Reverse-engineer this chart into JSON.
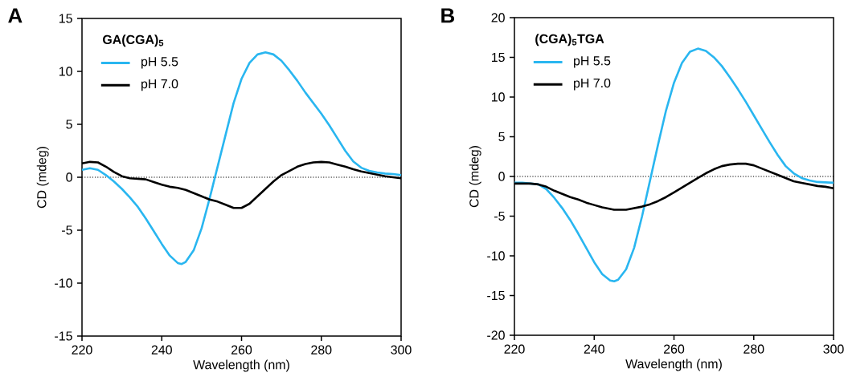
{
  "chart_data": [
    {
      "type": "line",
      "legend_title": "GA(CGA)$_{5}$",
      "xlabel": "Wavelength (nm)",
      "ylabel": "CD (mdeg)",
      "annotations": [
        "A"
      ],
      "x": [
        220,
        222,
        224,
        226,
        228,
        230,
        232,
        234,
        236,
        238,
        240,
        242,
        244,
        245,
        246,
        248,
        250,
        252,
        254,
        256,
        258,
        260,
        262,
        264,
        266,
        268,
        270,
        272,
        274,
        276,
        278,
        280,
        282,
        284,
        286,
        288,
        290,
        292,
        294,
        296,
        298,
        300
      ],
      "series": [
        {
          "name": "pH 5.5",
          "color": "#29b6f0",
          "values": [
            0.7,
            0.85,
            0.7,
            0.2,
            -0.4,
            -1.1,
            -1.9,
            -2.8,
            -3.9,
            -5.1,
            -6.3,
            -7.4,
            -8.1,
            -8.2,
            -8.0,
            -6.9,
            -4.8,
            -2.0,
            1.0,
            4.0,
            7.0,
            9.3,
            10.8,
            11.6,
            11.8,
            11.6,
            11.0,
            10.1,
            9.1,
            8.0,
            7.0,
            6.0,
            4.9,
            3.7,
            2.5,
            1.5,
            0.9,
            0.6,
            0.45,
            0.35,
            0.3,
            0.2
          ]
        },
        {
          "name": "pH 7.0",
          "color": "#000000",
          "values": [
            1.3,
            1.45,
            1.4,
            1.0,
            0.5,
            0.1,
            -0.1,
            -0.15,
            -0.2,
            -0.45,
            -0.7,
            -0.9,
            -1.0,
            -1.1,
            -1.2,
            -1.5,
            -1.8,
            -2.1,
            -2.3,
            -2.6,
            -2.9,
            -2.9,
            -2.5,
            -1.8,
            -1.1,
            -0.4,
            0.2,
            0.6,
            1.0,
            1.25,
            1.4,
            1.45,
            1.4,
            1.2,
            1.0,
            0.75,
            0.55,
            0.4,
            0.25,
            0.1,
            0.0,
            -0.1
          ]
        }
      ],
      "xlim": [
        220,
        300
      ],
      "xticks": [
        220,
        240,
        260,
        280,
        300
      ],
      "ylim": [
        -15,
        15
      ],
      "yticks": [
        -15,
        -10,
        -5,
        0,
        5,
        10,
        15
      ],
      "ref_lines": [
        {
          "axis": "y",
          "value": 0,
          "color": "#000000",
          "line_style": "dotted"
        }
      ],
      "legend": "top left"
    },
    {
      "type": "line",
      "legend_title": "(CGA)$_{5}$TGA",
      "xlabel": "Wavelength (nm)",
      "ylabel": "CD (mdeg)",
      "annotations": [
        "B"
      ],
      "x": [
        220,
        222,
        224,
        226,
        228,
        230,
        232,
        234,
        236,
        238,
        240,
        242,
        244,
        245,
        246,
        248,
        250,
        252,
        254,
        256,
        258,
        260,
        262,
        264,
        266,
        268,
        270,
        272,
        274,
        276,
        278,
        280,
        282,
        284,
        286,
        288,
        290,
        292,
        294,
        296,
        298,
        300
      ],
      "series": [
        {
          "name": "pH 5.5",
          "color": "#29b6f0",
          "values": [
            -0.8,
            -0.8,
            -0.9,
            -1.0,
            -1.6,
            -2.7,
            -4.0,
            -5.5,
            -7.2,
            -9.0,
            -10.8,
            -12.3,
            -13.1,
            -13.2,
            -13.0,
            -11.7,
            -9.0,
            -5.0,
            -0.5,
            4.0,
            8.3,
            11.8,
            14.3,
            15.7,
            16.1,
            15.8,
            15.0,
            13.9,
            12.5,
            11.0,
            9.4,
            7.7,
            6.0,
            4.3,
            2.7,
            1.3,
            0.4,
            -0.2,
            -0.5,
            -0.7,
            -0.75,
            -0.8
          ]
        },
        {
          "name": "pH 7.0",
          "color": "#000000",
          "values": [
            -0.9,
            -0.9,
            -0.9,
            -1.0,
            -1.3,
            -1.8,
            -2.2,
            -2.6,
            -2.9,
            -3.3,
            -3.6,
            -3.9,
            -4.1,
            -4.2,
            -4.2,
            -4.2,
            -4.0,
            -3.8,
            -3.5,
            -3.1,
            -2.6,
            -2.0,
            -1.4,
            -0.8,
            -0.2,
            0.4,
            0.9,
            1.3,
            1.5,
            1.6,
            1.6,
            1.4,
            1.0,
            0.6,
            0.2,
            -0.2,
            -0.6,
            -0.8,
            -1.0,
            -1.2,
            -1.3,
            -1.5
          ]
        }
      ],
      "xlim": [
        220,
        300
      ],
      "xticks": [
        220,
        240,
        260,
        280,
        300
      ],
      "ylim": [
        -20,
        20
      ],
      "yticks": [
        -20,
        -15,
        -10,
        -5,
        0,
        5,
        10,
        15,
        20
      ],
      "ref_lines": [
        {
          "axis": "y",
          "value": 0,
          "color": "#000000",
          "line_style": "dotted"
        }
      ],
      "legend": "top left"
    }
  ]
}
